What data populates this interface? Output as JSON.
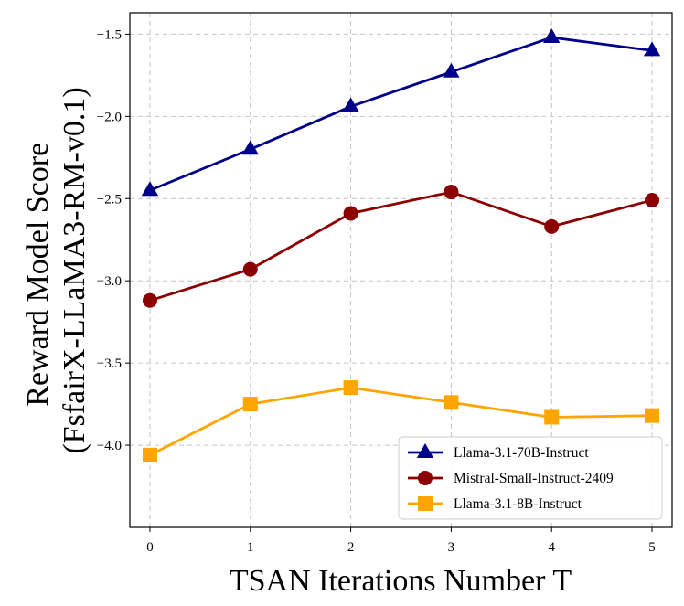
{
  "chart_data": {
    "type": "line",
    "title": "",
    "xlabel": "TSAN Iterations Number T",
    "ylabel_lines": [
      "Reward Model Score",
      "(FsfairX-LLaMA3-RM-v0.1)"
    ],
    "x": [
      0,
      1,
      2,
      3,
      4,
      5
    ],
    "x_tick_labels": [
      "0",
      "1",
      "2",
      "3",
      "4",
      "5"
    ],
    "xlim": [
      -0.2,
      5.2
    ],
    "ylim": [
      -4.5,
      -1.37
    ],
    "y_ticks": [
      -1.5,
      -2.0,
      -2.5,
      -3.0,
      -3.5,
      -4.0
    ],
    "y_tick_labels": [
      "−1.5",
      "−2.0",
      "−2.5",
      "−3.0",
      "−3.5",
      "−4.0"
    ],
    "grid": true,
    "legend_position": "lower-right",
    "series": [
      {
        "name": "Llama-3.1-70B-Instruct",
        "marker": "triangle",
        "color": "#00008B",
        "values": [
          -2.45,
          -2.2,
          -1.94,
          -1.73,
          -1.52,
          -1.6
        ]
      },
      {
        "name": "Mistral-Small-Instruct-2409",
        "marker": "circle",
        "color": "#8B0000",
        "values": [
          -3.12,
          -2.93,
          -2.59,
          -2.46,
          -2.67,
          -2.51
        ]
      },
      {
        "name": "Llama-3.1-8B-Instruct",
        "marker": "square",
        "color": "#FFA500",
        "values": [
          -4.06,
          -3.75,
          -3.65,
          -3.74,
          -3.83,
          -3.82
        ]
      }
    ]
  }
}
